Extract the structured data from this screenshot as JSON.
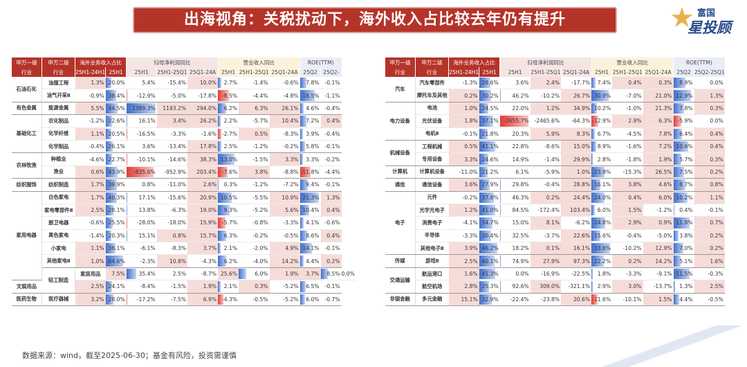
{
  "title": "出海视角：关税扰动下，海外收入占比较去年仍有提升",
  "logo": {
    "line1": "富国",
    "line2": "星投顾"
  },
  "source": "数据来源：wind，截至2025-06-30；基金有风险，投资需谨慎",
  "headers": {
    "l1": "申万一级",
    "l1b": "行业",
    "l2": "申万二级",
    "l2b": "行业",
    "g1": "海外业务收入占比",
    "g2": "归母净利润同比",
    "g3": "营业收入同比",
    "g4": "ROE(TTM)",
    "left_sub": [
      "25H1-24H1",
      "25H1",
      "25H1",
      "25H1-25Q1",
      "25Q1-24A",
      "25H1",
      "25H1-25Q1",
      "25Q1-24A",
      "25Q2",
      "25Q2-"
    ],
    "right_sub": [
      "25H1-24H1",
      "25H1",
      "25H1",
      "25H1-25Q1",
      "25Q1-24A",
      "25H1",
      "25H1-25Q1",
      "25Q1-24A",
      "25Q2",
      "25Q2-25Q1"
    ]
  },
  "left_rows": [
    {
      "l1": "石油石化",
      "span": 2,
      "l2": "油服工程",
      "v": [
        "1.3%",
        "20.0%",
        "5.4%",
        "-15.4%",
        "10.0%",
        "2.7%",
        "-1.4%",
        "-0.6%",
        "7.8%",
        "-0.1%"
      ]
    },
    {
      "l1": "",
      "l2": "油气开采Ⅱ",
      "v": [
        "-0.9%",
        "38.4%",
        "-12.9%",
        "-5.0%",
        "-17.8%",
        "-8.5%",
        "-4.4%",
        "-4.8%",
        "16.5%",
        "-1.1%"
      ]
    },
    {
      "l1": "有色金属",
      "span": 1,
      "l2": "能源金属",
      "v": [
        "5.5%",
        "44.5%",
        "1389.3%",
        "1193.2%",
        "294.0%",
        "6.2%",
        "6.3%",
        "26.1%",
        "4.6%",
        "-0.4%"
      ]
    },
    {
      "l1": "基础化工",
      "span": 3,
      "l2": "农化制品",
      "v": [
        "-1.2%",
        "22.6%",
        "16.1%",
        "3.4%",
        "26.2%",
        "2.2%",
        "-5.7%",
        "10.4%",
        "7.2%",
        "0.4%"
      ]
    },
    {
      "l1": "",
      "l2": "化学纤维",
      "v": [
        "1.1%",
        "20.5%",
        "-16.5%",
        "-3.3%",
        "-1.6%",
        "-2.7%",
        "0.5%",
        "-8.3%",
        "3.9%",
        "-0.4%"
      ]
    },
    {
      "l1": "",
      "l2": "化学制品",
      "v": [
        "-0.4%",
        "26.1%",
        "3.6%",
        "-13.4%",
        "17.8%",
        "2.5%",
        "-1.2%",
        "-0.2%",
        "5.8%",
        "-0.1%"
      ]
    },
    {
      "l1": "农林牧渔",
      "span": 2,
      "l2": "种植业",
      "v": [
        "-4.6%",
        "22.7%",
        "-10.1%",
        "-14.6%",
        "38.3%",
        "13.0%",
        "-1.5%",
        "3.3%",
        "3.3%",
        "-0.2%"
      ]
    },
    {
      "l1": "",
      "l2": "渔业",
      "v": [
        "0.6%",
        "43.9%",
        "-835.6%",
        "-952.9%",
        "203.4%",
        "-7.6%",
        "3.8%",
        "-8.8%",
        "-11.8%",
        "-4.4%"
      ]
    },
    {
      "l1": "纺织服饰",
      "span": 1,
      "l2": "纺织制造",
      "v": [
        "1.7%",
        "39.9%",
        "0.8%",
        "-11.0%",
        "2.6%",
        "0.3%",
        "-1.2%",
        "-7.2%",
        "9.4%",
        "-0.1%"
      ]
    },
    {
      "l1": "家用电器",
      "span": 7,
      "l2": "白色家电",
      "v": [
        "1.7%",
        "40.3%",
        "17.1%",
        "-15.6%",
        "20.9%",
        "10.5%",
        "-5.5%",
        "10.9%",
        "21.3%",
        "1.3%"
      ]
    },
    {
      "l1": "",
      "l2": "家电零部件Ⅱ",
      "v": [
        "2.5%",
        "28.1%",
        "13.8%",
        "-6.3%",
        "19.0%",
        "9.3%",
        "-5.2%",
        "5.6%",
        "10.4%",
        "0.4%"
      ]
    },
    {
      "l1": "",
      "l2": "厨卫电器",
      "v": [
        "-0.6%",
        "25.5%",
        "-28.0%",
        "-18.0%",
        "15.9%",
        "-5.7%",
        "-0.8%",
        "-3.3%",
        "4.1%",
        "-0.6%"
      ]
    },
    {
      "l1": "",
      "l2": "黑色家电",
      "v": [
        "-1.4%",
        "20.3%",
        "15.1%",
        "0.8%",
        "15.7%",
        "6.3%",
        "-0.2%",
        "-0.5%",
        "8.6%",
        "0.4%"
      ]
    },
    {
      "l1": "",
      "l2": "小家电",
      "v": [
        "1.1%",
        "36.1%",
        "-6.1%",
        "-8.3%",
        "3.7%",
        "2.1%",
        "-2.0%",
        "4.9%",
        "14.1%",
        "-0.1%"
      ]
    },
    {
      "l1": "",
      "l2": "其他家电Ⅱ",
      "v": [
        "1.0%",
        "64.6%",
        "-2.3%",
        "10.8%",
        "-4.3%",
        "6.2%",
        "-4.0%",
        "14.2%",
        "4.4%",
        "0.2%"
      ]
    },
    {
      "l1": "轻工制造",
      "span": 2,
      "l2": "家居用品",
      "v": [
        "7.5%",
        "35.4%",
        "2.5%",
        "-8.7%",
        "25.6%",
        "6.0%",
        "1.9%",
        "3.7%",
        "8.5%",
        "0.0%"
      ]
    },
    {
      "l1": "",
      "l2": "文娱用品",
      "v": [
        "2.5%",
        "24.1%",
        "-8.4%",
        "-1.5%",
        "1.9%",
        "2.1%",
        "0.3%",
        "-5.2%",
        "6.5%",
        "-0.1%"
      ]
    },
    {
      "l1": "医药生物",
      "span": 1,
      "l2": "医疗器械",
      "v": [
        "3.2%",
        "28.0%",
        "-17.2%",
        "-7.5%",
        "6.9%",
        "-4.3%",
        "-0.5%",
        "-5.2%",
        "6.0%",
        "-0.7%"
      ]
    }
  ],
  "right_rows": [
    {
      "l1": "汽车",
      "span": 2,
      "l2": "汽车零部件",
      "v": [
        "-1.3%",
        "28.6%",
        "3.6%",
        "2.4%",
        "-17.7%",
        "7.4%",
        "0.4%",
        "0.3%",
        "8.9%",
        "0.0%"
      ]
    },
    {
      "l1": "",
      "l2": "摩托车及其他",
      "v": [
        "0.2%",
        "30.2%",
        "46.2%",
        "-10.2%",
        "26.7%",
        "30.9%",
        "-7.0%",
        "21.0%",
        "12.9%",
        "1.3%"
      ]
    },
    {
      "l1": "电力设备",
      "span": 3,
      "l2": "电池",
      "v": [
        "1.0%",
        "24.5%",
        "22.0%",
        "1.2%",
        "34.9%",
        "10.2%",
        "-1.0%",
        "21.3%",
        "7.8%",
        "0.3%"
      ]
    },
    {
      "l1": "",
      "l2": "光伏设备",
      "v": [
        "1.8%",
        "37.1%",
        "-2655.7%",
        "-2465.6%",
        "-64.3%",
        "-12.9%",
        "2.9%",
        "6.3%",
        "-5.9%",
        "0.0%"
      ]
    },
    {
      "l1": "",
      "l2": "电机Ⅱ",
      "v": [
        "-0.1%",
        "21.8%",
        "20.3%",
        "5.9%",
        "8.3%",
        "6.7%",
        "-4.5%",
        "7.8%",
        "6.4%",
        "0.4%"
      ]
    },
    {
      "l1": "机械设备",
      "span": 2,
      "l2": "工程机械",
      "v": [
        "0.5%",
        "41.1%",
        "22.8%",
        "-8.6%",
        "15.0%",
        "8.9%",
        "-1.6%",
        "7.2%",
        "10.6%",
        "0.4%"
      ]
    },
    {
      "l1": "",
      "l2": "专用设备",
      "v": [
        "3.3%",
        "24.6%",
        "14.9%",
        "-1.4%",
        "29.9%",
        "2.8%",
        "-1.8%",
        "1.9%",
        "5.7%",
        "0.3%"
      ]
    },
    {
      "l1": "计算机",
      "span": 1,
      "l2": "计算机设备",
      "v": [
        "-11.0%",
        "21.2%",
        "6.1%",
        "-5.9%",
        "1.0%",
        "23.9%",
        "-15.3%",
        "26.5%",
        "7.5%",
        "0.2%"
      ]
    },
    {
      "l1": "通信",
      "span": 1,
      "l2": "通信设备",
      "v": [
        "3.6%",
        "27.9%",
        "29.8%",
        "-0.4%",
        "28.8%",
        "16.1%",
        "3.8%",
        "4.6%",
        "8.7%",
        "0.8%"
      ]
    },
    {
      "l1": "电子",
      "span": 5,
      "l2": "元件",
      "v": [
        "-0.2%",
        "37.8%",
        "46.3%",
        "0.2%",
        "24.4%",
        "24.0%",
        "0.4%",
        "6.0%",
        "10.2%",
        "1.1%"
      ]
    },
    {
      "l1": "",
      "l2": "光学光电子",
      "v": [
        "1.2%",
        "41.0%",
        "84.5%",
        "-172.4%",
        "103.4%",
        "6.0%",
        "1.5%",
        "-1.2%",
        "0.4%",
        "-0.1%"
      ]
    },
    {
      "l1": "",
      "l2": "消费电子",
      "v": [
        "-4.1%",
        "34.7%",
        "15.0%",
        "8.1%",
        "-6.2%",
        "24.8%",
        "2.9%",
        "0.9%",
        "11.8%",
        "0.7%"
      ]
    },
    {
      "l1": "",
      "l2": "半导体",
      "v": [
        "-3.3%",
        "30.4%",
        "32.5%",
        "-3.7%",
        "22.6%",
        "15.6%",
        "-0.4%",
        "-5.0%",
        "3.8%",
        "0.2%"
      ]
    },
    {
      "l1": "",
      "l2": "其他电子Ⅱ",
      "v": [
        "3.9%",
        "46.2%",
        "18.2%",
        "0.1%",
        "16.1%",
        "33.6%",
        "-10.2%",
        "12.9%",
        "7.0%",
        "0.2%"
      ]
    },
    {
      "l1": "传媒",
      "span": 1,
      "l2": "游戏Ⅱ",
      "v": [
        "2.5%",
        "40.1%",
        "74.9%",
        "27.9%",
        "97.3%",
        "22.2%",
        "0.2%",
        "14.2%",
        "5.1%",
        "1.6%"
      ]
    },
    {
      "l1": "交通运输",
      "span": 2,
      "l2": "航运港口",
      "v": [
        "1.6%",
        "41.3%",
        "0.0%",
        "-16.9%",
        "-22.5%",
        "1.8%",
        "-3.3%",
        "-9.1%",
        "11.5%",
        "-0.3%"
      ]
    },
    {
      "l1": "",
      "l2": "航空机场",
      "v": [
        "2.8%",
        "25.3%",
        "92.6%",
        "309.0%",
        "-321.1%",
        "2.9%",
        "3.0%",
        "-13.7%",
        "1.3%",
        "2.5%"
      ]
    },
    {
      "l1": "非银金融",
      "span": 1,
      "l2": "多元金融",
      "v": [
        "15.1%",
        "32.9%",
        "-22.4%",
        "-23.8%",
        "20.6%",
        "-11.6%",
        "-10.1%",
        "1.5%",
        "4.4%",
        "-0.5%"
      ]
    }
  ],
  "bar_cols": [
    1,
    2,
    5,
    8
  ],
  "colors": {
    "accent": "#b5342a",
    "pos_cell": "#f6dcd8",
    "neg_bar": "#e53a33",
    "pos_bar": "#3f6fd0"
  }
}
